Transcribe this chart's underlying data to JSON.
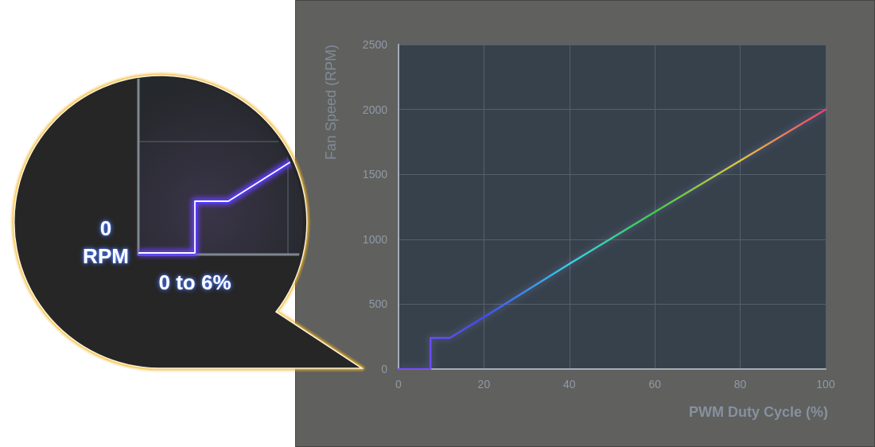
{
  "chart_data": {
    "type": "line",
    "xlabel": "PWM Duty Cycle (%)",
    "ylabel": "Fan Speed (RPM)",
    "annotations": [
      "0 RPM",
      "0 to 6%"
    ],
    "x": [
      0,
      7.5,
      7.5,
      12,
      20,
      40,
      60,
      80,
      100
    ],
    "series": [
      {
        "values": [
          0,
          0,
          240,
          240,
          400,
          810,
          1210,
          1605,
          2000
        ],
        "colors": [
          "#7a4cff",
          "#7a4cff",
          "#6a4cff",
          "#5a4eff",
          "#3f4cff",
          "#2fd6e6",
          "#3cd23c",
          "#e6c832",
          "#ff3c6e"
        ]
      }
    ],
    "xlim": [
      0,
      100
    ],
    "ylim": [
      0,
      2500
    ],
    "xticks": [
      0,
      20,
      40,
      60,
      80,
      100
    ],
    "yticks": [
      0,
      500,
      1000,
      1500,
      2000,
      2500
    ],
    "grid": true,
    "marker": "none"
  }
}
